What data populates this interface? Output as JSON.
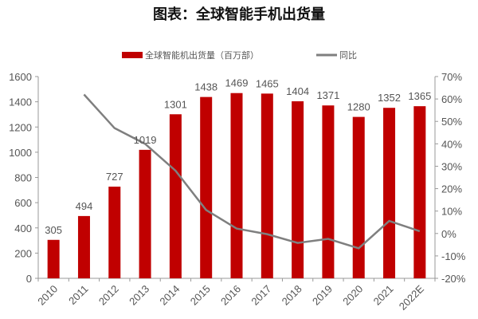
{
  "chart_data": {
    "type": "bar+line",
    "title": "图表：全球智能手机出货量",
    "categories": [
      "2010",
      "2011",
      "2012",
      "2013",
      "2014",
      "2015",
      "2016",
      "2017",
      "2018",
      "2019",
      "2020",
      "2021",
      "2022E"
    ],
    "series": [
      {
        "name": "全球智能机出货量（百万部）",
        "type": "bar",
        "axis": "left",
        "color": "#C00000",
        "values": [
          305,
          494,
          727,
          1019,
          1301,
          1438,
          1469,
          1465,
          1404,
          1371,
          1280,
          1352,
          1365
        ]
      },
      {
        "name": "同比",
        "type": "line",
        "axis": "right",
        "color": "#7F7F7F",
        "values": [
          null,
          62,
          47,
          40,
          28,
          10.5,
          2.2,
          -0.3,
          -4.2,
          -2.4,
          -6.6,
          5.6,
          1.0
        ]
      }
    ],
    "left_axis": {
      "ylim": [
        0,
        1600
      ],
      "ticks": [
        "0",
        "200",
        "400",
        "600",
        "800",
        "1000",
        "1200",
        "1400",
        "1600"
      ]
    },
    "right_axis": {
      "ylim": [
        -20,
        70
      ],
      "ticks": [
        "-20%",
        "-10%",
        "0%",
        "10%",
        "20%",
        "30%",
        "40%",
        "50%",
        "60%",
        "70%"
      ]
    },
    "grid": false,
    "legend_position": "top",
    "data_labels": [
      "305",
      "494",
      "727",
      "1019",
      "1301",
      "1438",
      "1469",
      "1465",
      "1404",
      "1371",
      "1280",
      "1352",
      "1365"
    ]
  }
}
